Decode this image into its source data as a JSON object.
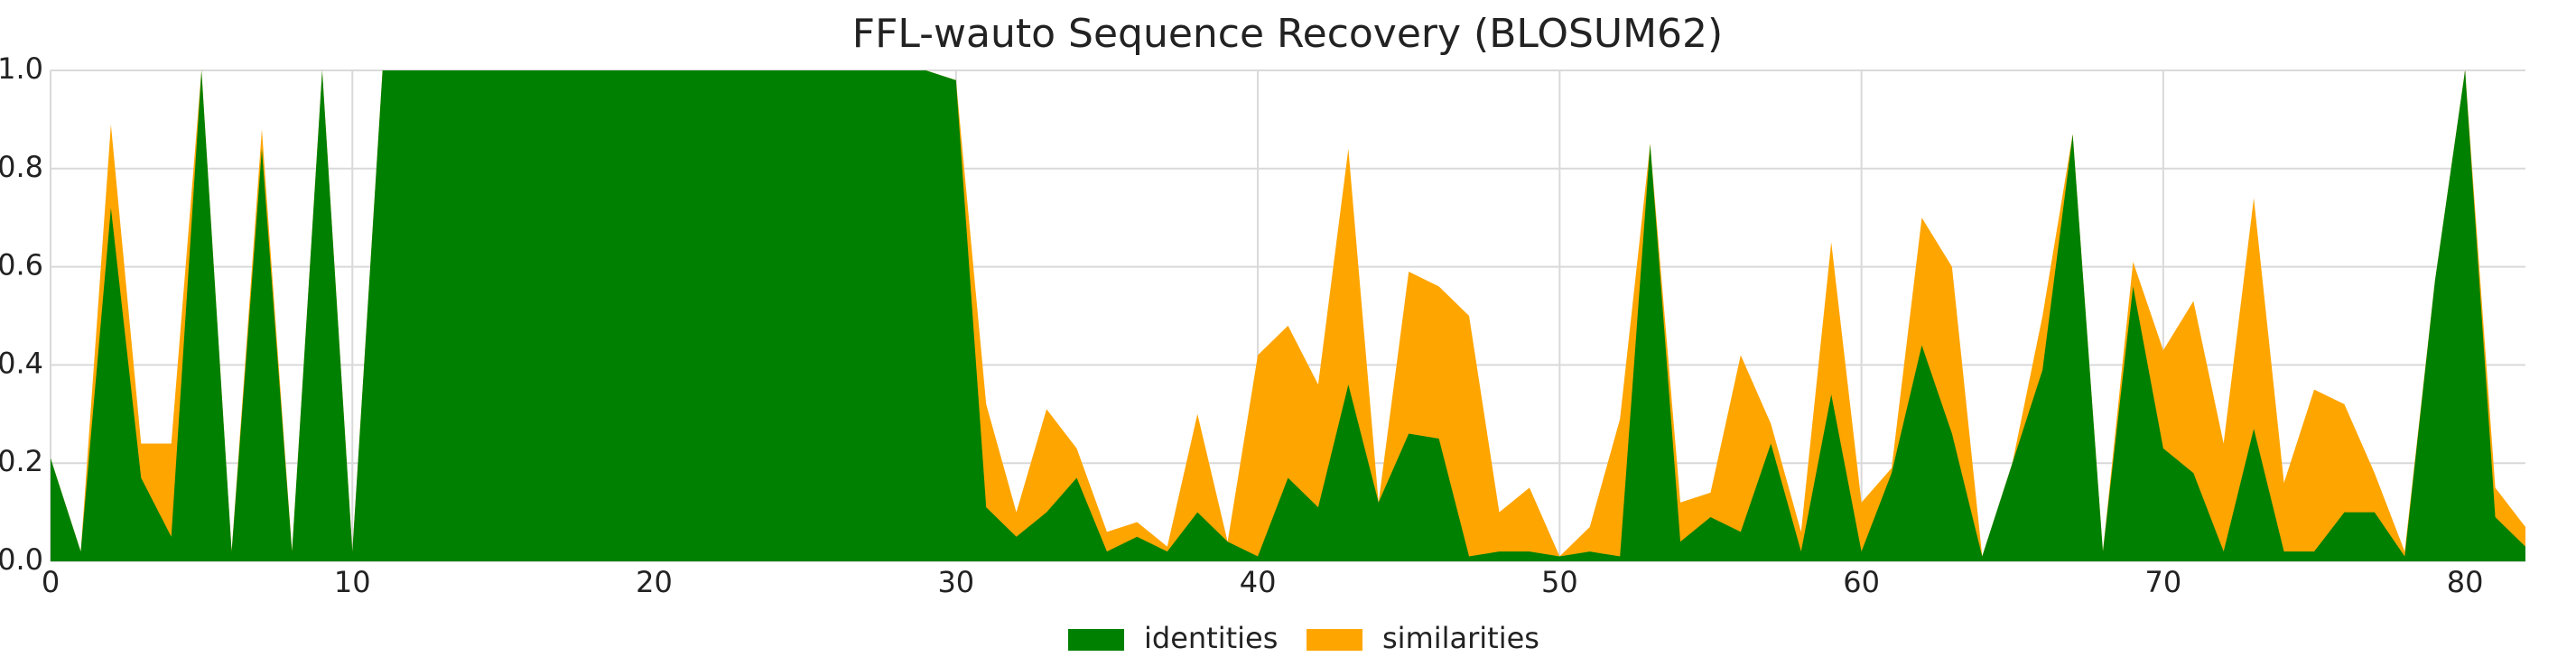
{
  "chart_data": {
    "type": "area",
    "title": "FFL-wauto Sequence Recovery (BLOSUM62)",
    "xlabel": "",
    "ylabel": "",
    "xlim": [
      0,
      82
    ],
    "ylim": [
      0,
      1.0
    ],
    "xticks": [
      0,
      10,
      20,
      30,
      40,
      50,
      60,
      70,
      80
    ],
    "yticks": [
      0.0,
      0.2,
      0.4,
      0.6,
      0.8,
      1.0
    ],
    "xtick_labels": [
      "0",
      "10",
      "20",
      "30",
      "40",
      "50",
      "60",
      "70",
      "80"
    ],
    "ytick_labels": [
      "0.0",
      "0.2",
      "0.4",
      "0.6",
      "0.8",
      "1.0"
    ],
    "grid": true,
    "legend_position": "bottom-center",
    "x": [
      0,
      1,
      2,
      3,
      4,
      5,
      6,
      7,
      8,
      9,
      10,
      11,
      12,
      13,
      14,
      15,
      16,
      17,
      18,
      19,
      20,
      21,
      22,
      23,
      24,
      25,
      26,
      27,
      28,
      29,
      30,
      31,
      32,
      33,
      34,
      35,
      36,
      37,
      38,
      39,
      40,
      41,
      42,
      43,
      44,
      45,
      46,
      47,
      48,
      49,
      50,
      51,
      52,
      53,
      54,
      55,
      56,
      57,
      58,
      59,
      60,
      61,
      62,
      63,
      64,
      65,
      66,
      67,
      68,
      69,
      70,
      71,
      72,
      73,
      74,
      75,
      76,
      77,
      78,
      79,
      80,
      81,
      82
    ],
    "series": [
      {
        "name": "identities",
        "color": "#008000",
        "values": [
          0.21,
          0.02,
          0.72,
          0.17,
          0.05,
          1.0,
          0.02,
          0.84,
          0.02,
          1.0,
          0.02,
          1.0,
          1.0,
          1.0,
          1.0,
          1.0,
          1.0,
          1.0,
          1.0,
          1.0,
          1.0,
          1.0,
          1.0,
          1.0,
          1.0,
          1.0,
          1.0,
          1.0,
          1.0,
          1.0,
          0.98,
          0.11,
          0.05,
          0.1,
          0.17,
          0.02,
          0.05,
          0.02,
          0.1,
          0.04,
          0.01,
          0.17,
          0.11,
          0.36,
          0.12,
          0.26,
          0.25,
          0.01,
          0.02,
          0.02,
          0.01,
          0.02,
          0.01,
          0.85,
          0.04,
          0.09,
          0.06,
          0.24,
          0.02,
          0.34,
          0.02,
          0.18,
          0.44,
          0.26,
          0.01,
          0.2,
          0.39,
          0.87,
          0.02,
          0.56,
          0.23,
          0.18,
          0.02,
          0.27,
          0.02,
          0.02,
          0.1,
          0.1,
          0.01,
          0.57,
          1.0,
          0.09,
          0.03
        ]
      },
      {
        "name": "similarities",
        "color": "#ffa500",
        "values": [
          0.21,
          0.02,
          0.89,
          0.24,
          0.24,
          1.0,
          0.02,
          0.88,
          0.02,
          1.0,
          0.02,
          1.0,
          1.0,
          1.0,
          1.0,
          1.0,
          1.0,
          1.0,
          1.0,
          1.0,
          1.0,
          1.0,
          1.0,
          1.0,
          1.0,
          1.0,
          1.0,
          1.0,
          1.0,
          1.0,
          0.98,
          0.32,
          0.1,
          0.31,
          0.23,
          0.06,
          0.08,
          0.03,
          0.3,
          0.04,
          0.42,
          0.48,
          0.36,
          0.84,
          0.12,
          0.59,
          0.56,
          0.5,
          0.1,
          0.15,
          0.01,
          0.07,
          0.29,
          0.85,
          0.12,
          0.14,
          0.42,
          0.28,
          0.06,
          0.65,
          0.12,
          0.19,
          0.7,
          0.6,
          0.01,
          0.2,
          0.5,
          0.87,
          0.02,
          0.61,
          0.43,
          0.53,
          0.24,
          0.74,
          0.16,
          0.35,
          0.32,
          0.18,
          0.02,
          0.57,
          1.0,
          0.15,
          0.07
        ]
      }
    ]
  }
}
